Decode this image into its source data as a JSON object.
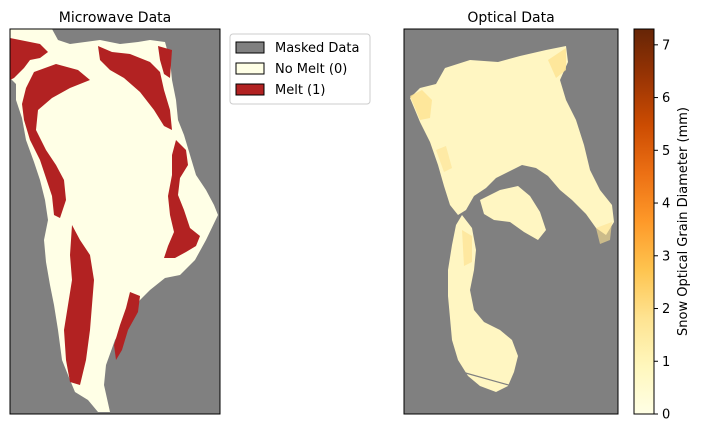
{
  "chart_data": [
    {
      "type": "heatmap",
      "title": "Microwave Data",
      "legend": {
        "placement": "outside upper-right",
        "entries": [
          {
            "label": "Masked Data",
            "color": "#808080"
          },
          {
            "label": "No Melt (0)",
            "color": "#FFFFE6"
          },
          {
            "label": "Melt (1)",
            "color": "#B22222"
          }
        ]
      },
      "categories": [
        "Masked Data",
        "No Melt (0)",
        "Melt (1)"
      ],
      "values": [
        -1,
        0,
        1
      ],
      "background_color": "#808080",
      "grid": false,
      "ticks": false
    },
    {
      "type": "heatmap",
      "title": "Optical Data",
      "colorbar": {
        "label": "Snow Optical Grain Diameter (mm)",
        "range": [
          0,
          7.3
        ],
        "ticks": [
          "0",
          "1",
          "2",
          "3",
          "4",
          "5",
          "6",
          "7"
        ],
        "colormap": [
          "#FFFFE5",
          "#FFF7BC",
          "#FEE391",
          "#FEC44F",
          "#FE9929",
          "#EC7014",
          "#CC4C02",
          "#993404",
          "#662506"
        ]
      },
      "background_color": "#808080",
      "grid": false,
      "ticks": false
    }
  ]
}
